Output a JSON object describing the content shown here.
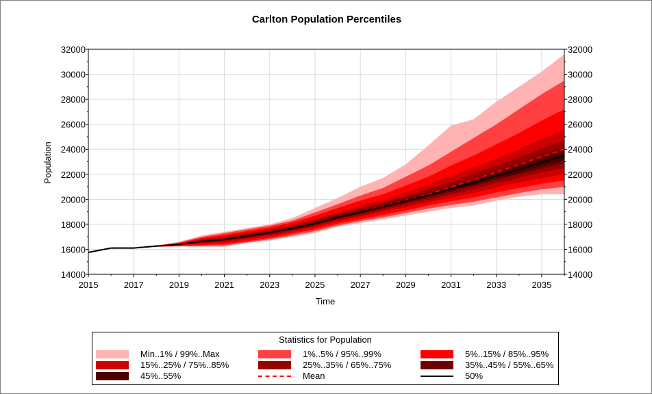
{
  "chart_data": {
    "type": "area",
    "title": "Carlton Population Percentiles",
    "xlabel": "Time",
    "ylabel": "Population",
    "xlim": [
      2015,
      2036
    ],
    "ylim": [
      14000,
      32000
    ],
    "x_ticks": [
      "2015",
      "2017",
      "2019",
      "2021",
      "2023",
      "2025",
      "2027",
      "2029",
      "2031",
      "2033",
      "2035"
    ],
    "y_ticks": [
      "14000",
      "16000",
      "18000",
      "20000",
      "22000",
      "24000",
      "26000",
      "28000",
      "30000",
      "32000"
    ],
    "right_axis": true,
    "grid": true,
    "x": [
      2015,
      2016,
      2017,
      2018,
      2019,
      2020,
      2021,
      2022,
      2023,
      2024,
      2025,
      2026,
      2027,
      2028,
      2029,
      2030,
      2031,
      2032,
      2033,
      2034,
      2035,
      2036
    ],
    "series": [
      {
        "name": "Min..1% / 99%..Max",
        "color": "#ffb3b3",
        "lower": [
          15750,
          16100,
          16100,
          16200,
          16200,
          16200,
          16200,
          16500,
          16700,
          17000,
          17300,
          17800,
          18100,
          18400,
          18700,
          19000,
          19300,
          19500,
          19900,
          20200,
          20400,
          20400
        ],
        "upper": [
          15750,
          16100,
          16100,
          16300,
          16600,
          17100,
          17400,
          17700,
          18000,
          18500,
          19300,
          20100,
          21000,
          21700,
          22800,
          24300,
          25900,
          26400,
          27800,
          29000,
          30200,
          31600
        ]
      },
      {
        "name": "1%..5% / 95%..99%",
        "color": "#ff4040",
        "lower": [
          15750,
          16100,
          16100,
          16200,
          16250,
          16250,
          16300,
          16550,
          16800,
          17100,
          17450,
          17900,
          18250,
          18550,
          18900,
          19250,
          19550,
          19800,
          20150,
          20500,
          20800,
          21000
        ],
        "upper": [
          15750,
          16100,
          16100,
          16300,
          16550,
          17000,
          17300,
          17600,
          17900,
          18300,
          18950,
          19600,
          20300,
          20900,
          21800,
          22700,
          23800,
          24900,
          26000,
          27200,
          28400,
          29500
        ]
      },
      {
        "name": "5%..15% / 85%..95%",
        "color": "#ff0000",
        "lower": [
          15750,
          16100,
          16100,
          16220,
          16280,
          16350,
          16400,
          16650,
          16900,
          17250,
          17600,
          18050,
          18400,
          18750,
          19100,
          19500,
          19850,
          20150,
          20550,
          20900,
          21250,
          21500
        ],
        "upper": [
          15750,
          16100,
          16100,
          16290,
          16500,
          16900,
          17150,
          17450,
          17750,
          18150,
          18700,
          19300,
          19900,
          20400,
          21100,
          21800,
          22700,
          23500,
          24400,
          25300,
          26300,
          27200
        ]
      },
      {
        "name": "15%..25% / 75%..85%",
        "color": "#cc0000",
        "lower": [
          15750,
          16100,
          16100,
          16240,
          16320,
          16450,
          16550,
          16800,
          17050,
          17400,
          17750,
          18250,
          18600,
          19000,
          19350,
          19750,
          20150,
          20500,
          20950,
          21350,
          21700,
          22000
        ],
        "upper": [
          15750,
          16100,
          16100,
          16280,
          16450,
          16800,
          17000,
          17300,
          17600,
          17950,
          18450,
          18950,
          19500,
          19950,
          20550,
          21150,
          21850,
          22550,
          23250,
          24000,
          24800,
          25600
        ]
      },
      {
        "name": "25%..35% / 65%..75%",
        "color": "#990000",
        "lower": [
          15750,
          16100,
          16100,
          16250,
          16350,
          16520,
          16650,
          16900,
          17150,
          17500,
          17850,
          18350,
          18700,
          19150,
          19550,
          19950,
          20400,
          20800,
          21300,
          21700,
          22150,
          22500
        ],
        "upper": [
          15750,
          16100,
          16100,
          16270,
          16420,
          16750,
          16900,
          17200,
          17500,
          17850,
          18300,
          18800,
          19300,
          19700,
          20250,
          20800,
          21400,
          22050,
          22700,
          23350,
          24050,
          24700
        ]
      },
      {
        "name": "35%..45% / 55%..65%",
        "color": "#6e0000",
        "lower": [
          15750,
          16100,
          16100,
          16255,
          16370,
          16580,
          16720,
          16980,
          17250,
          17580,
          17950,
          18450,
          18820,
          19280,
          19700,
          20120,
          20600,
          21050,
          21550,
          22000,
          22450,
          22900
        ],
        "upper": [
          15750,
          16100,
          16100,
          16265,
          16400,
          16700,
          16850,
          17120,
          17420,
          17780,
          18200,
          18680,
          19150,
          19550,
          20050,
          20550,
          21100,
          21700,
          22300,
          22900,
          23550,
          24150
        ]
      },
      {
        "name": "45%..55%",
        "color": "#4a0000",
        "lower": [
          15750,
          16100,
          16100,
          16258,
          16380,
          16610,
          16760,
          17020,
          17300,
          17630,
          18000,
          18500,
          18880,
          19330,
          19760,
          20220,
          20700,
          21150,
          21700,
          22150,
          22650,
          23150
        ],
        "upper": [
          15750,
          16100,
          16100,
          16262,
          16395,
          16670,
          16820,
          17080,
          17380,
          17720,
          18120,
          18600,
          19040,
          19470,
          19950,
          20420,
          20950,
          21500,
          22050,
          22600,
          23250,
          23800
        ]
      },
      {
        "name": "Mean",
        "color": "#ff0000",
        "style": "dashed",
        "values": [
          15750,
          16100,
          16100,
          16260,
          16390,
          16650,
          16800,
          17060,
          17350,
          17690,
          18080,
          18580,
          19000,
          19450,
          19920,
          20420,
          20980,
          21580,
          22180,
          22780,
          23420,
          24000
        ]
      },
      {
        "name": "50%",
        "color": "#000000",
        "style": "solid",
        "values": [
          15750,
          16100,
          16100,
          16260,
          16388,
          16640,
          16790,
          17050,
          17340,
          17675,
          18060,
          18550,
          18960,
          19400,
          19855,
          20320,
          20825,
          21325,
          21875,
          22375,
          22950,
          23500
        ]
      }
    ],
    "legend": {
      "title": "Statistics for Population",
      "placement": "bottom"
    }
  }
}
